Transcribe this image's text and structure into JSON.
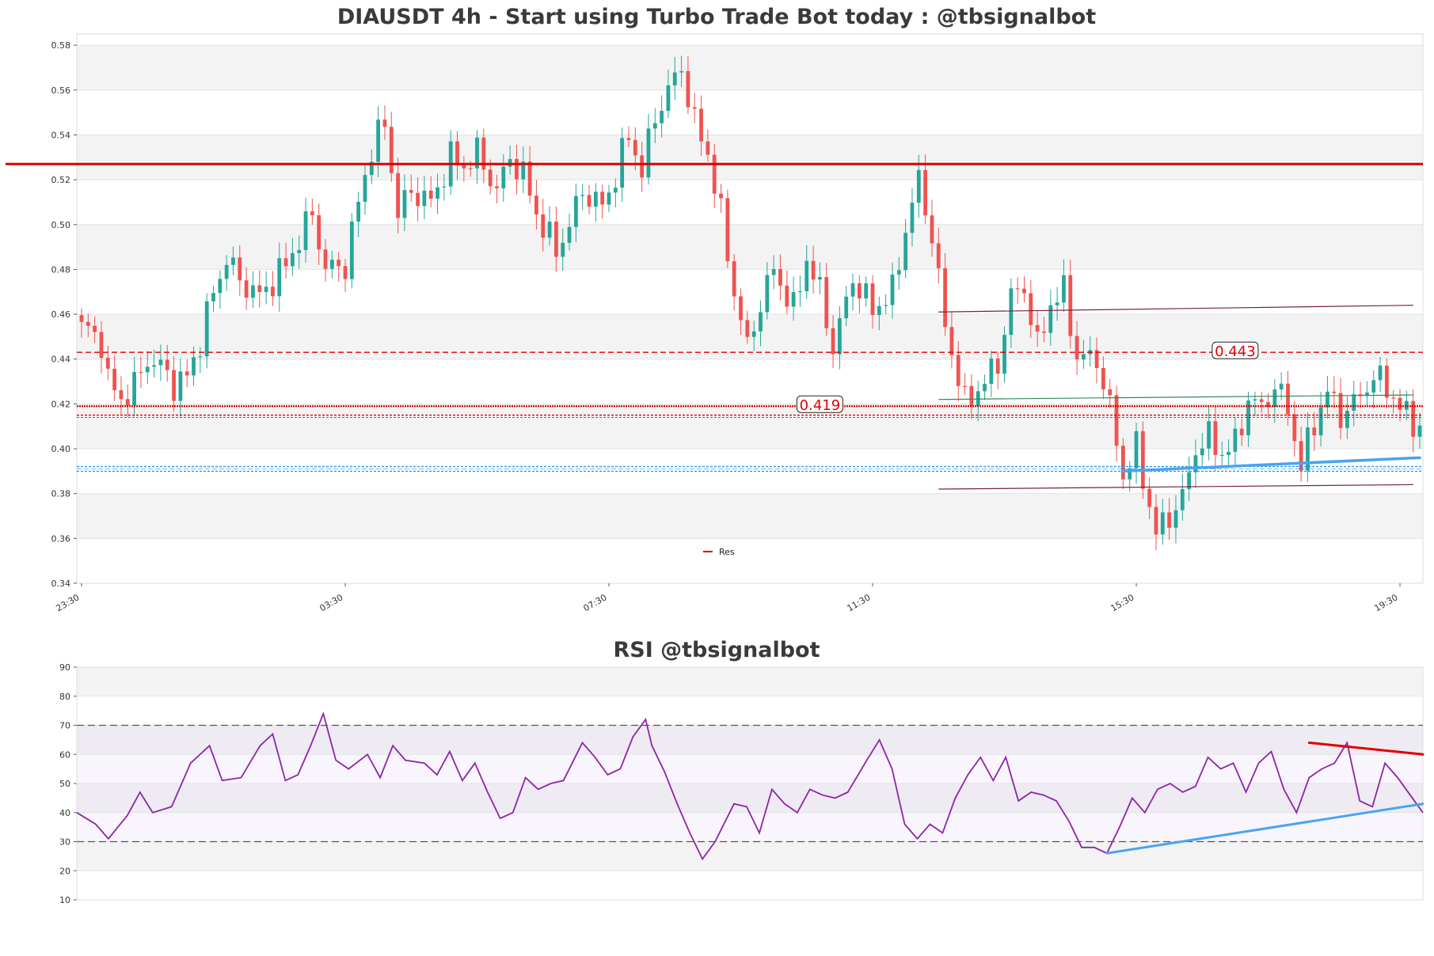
{
  "chart_data": [
    {
      "type": "candlestick",
      "title": "DIAUSDT 4h - Start using Turbo Trade Bot today : @tbsignalbot",
      "xlabel": "",
      "ylabel": "",
      "ylim": [
        0.34,
        0.585
      ],
      "yticks": [
        "0.34",
        "0.36",
        "0.38",
        "0.40",
        "0.42",
        "0.44",
        "0.46",
        "0.48",
        "0.50",
        "0.52",
        "0.54",
        "0.56",
        "0.58"
      ],
      "xticks": [
        "23:30",
        "03:30",
        "07:30",
        "11:30",
        "15:30",
        "19:30"
      ],
      "xtick_index": [
        0,
        40,
        80,
        120,
        160,
        200
      ],
      "n_candles": 204,
      "grid": true,
      "legend": {
        "entries": [
          "Res"
        ],
        "placement": "lower-center"
      },
      "colors": {
        "up": "#26a69a",
        "down": "#ef5350",
        "resistance": "#e00000",
        "support": "#1f8fe6",
        "trend": "#7a2040",
        "accent_green": "#2e8b57"
      },
      "resistance_line": 0.527,
      "hlines_dashed": [
        0.443,
        0.419,
        0.415
      ],
      "support_band": 0.391,
      "price_labels": [
        "0.443",
        "0.419"
      ],
      "trend_channel": [
        {
          "from": [
            130,
            0.461
          ],
          "to": [
            202,
            0.464
          ]
        },
        {
          "from": [
            130,
            0.422
          ],
          "to": [
            202,
            0.424
          ]
        },
        {
          "from": [
            130,
            0.382
          ],
          "to": [
            202,
            0.384
          ]
        }
      ],
      "support_trend": {
        "from": [
          158,
          0.39
        ],
        "to": [
          203,
          0.396
        ]
      },
      "anchors": [
        [
          0,
          0.455
        ],
        [
          3,
          0.448
        ],
        [
          4,
          0.43
        ],
        [
          6,
          0.422
        ],
        [
          8,
          0.428
        ],
        [
          10,
          0.44
        ],
        [
          13,
          0.434
        ],
        [
          14,
          0.428
        ],
        [
          16,
          0.432
        ],
        [
          18,
          0.448
        ],
        [
          20,
          0.47
        ],
        [
          22,
          0.485
        ],
        [
          24,
          0.475
        ],
        [
          27,
          0.468
        ],
        [
          31,
          0.482
        ],
        [
          35,
          0.505
        ],
        [
          37,
          0.48
        ],
        [
          40,
          0.482
        ],
        [
          42,
          0.51
        ],
        [
          44,
          0.534
        ],
        [
          46,
          0.545
        ],
        [
          48,
          0.505
        ],
        [
          50,
          0.515
        ],
        [
          53,
          0.51
        ],
        [
          56,
          0.53
        ],
        [
          58,
          0.526
        ],
        [
          60,
          0.532
        ],
        [
          63,
          0.515
        ],
        [
          65,
          0.53
        ],
        [
          67,
          0.522
        ],
        [
          69,
          0.505
        ],
        [
          72,
          0.488
        ],
        [
          74,
          0.5
        ],
        [
          76,
          0.515
        ],
        [
          79,
          0.508
        ],
        [
          81,
          0.522
        ],
        [
          83,
          0.54
        ],
        [
          85,
          0.524
        ],
        [
          87,
          0.548
        ],
        [
          89,
          0.56
        ],
        [
          91,
          0.57
        ],
        [
          93,
          0.545
        ],
        [
          95,
          0.532
        ],
        [
          97,
          0.504
        ],
        [
          99,
          0.47
        ],
        [
          101,
          0.445
        ],
        [
          103,
          0.465
        ],
        [
          105,
          0.48
        ],
        [
          108,
          0.462
        ],
        [
          110,
          0.485
        ],
        [
          112,
          0.47
        ],
        [
          114,
          0.445
        ],
        [
          117,
          0.476
        ],
        [
          120,
          0.462
        ],
        [
          123,
          0.47
        ],
        [
          125,
          0.498
        ],
        [
          127,
          0.52
        ],
        [
          129,
          0.495
        ],
        [
          131,
          0.455
        ],
        [
          134,
          0.42
        ],
        [
          137,
          0.43
        ],
        [
          139,
          0.438
        ],
        [
          141,
          0.468
        ],
        [
          143,
          0.472
        ],
        [
          145,
          0.445
        ],
        [
          147,
          0.465
        ],
        [
          149,
          0.47
        ],
        [
          151,
          0.441
        ],
        [
          154,
          0.44
        ],
        [
          156,
          0.418
        ],
        [
          158,
          0.388
        ],
        [
          160,
          0.4
        ],
        [
          163,
          0.362
        ],
        [
          165,
          0.37
        ],
        [
          167,
          0.378
        ],
        [
          169,
          0.4
        ],
        [
          171,
          0.405
        ],
        [
          173,
          0.398
        ],
        [
          175,
          0.402
        ],
        [
          177,
          0.422
        ],
        [
          179,
          0.418
        ],
        [
          181,
          0.428
        ],
        [
          183,
          0.418
        ],
        [
          185,
          0.392
        ],
        [
          187,
          0.412
        ],
        [
          189,
          0.425
        ],
        [
          191,
          0.415
        ],
        [
          193,
          0.42
        ],
        [
          196,
          0.432
        ],
        [
          198,
          0.428
        ],
        [
          200,
          0.418
        ],
        [
          202,
          0.412
        ],
        [
          203,
          0.41
        ]
      ]
    },
    {
      "type": "line",
      "title": "RSI @tbsignalbot",
      "xlabel": "",
      "ylabel": "",
      "ylim": [
        10,
        90
      ],
      "yticks": [
        "10",
        "20",
        "30",
        "40",
        "50",
        "60",
        "70",
        "80",
        "90"
      ],
      "overbought": 70,
      "oversold": 30,
      "series": [
        {
          "points": [
            [
              0,
              40
            ],
            [
              3,
              36
            ],
            [
              5,
              31
            ],
            [
              8,
              39
            ],
            [
              10,
              47
            ],
            [
              12,
              40
            ],
            [
              15,
              42
            ],
            [
              18,
              57
            ],
            [
              21,
              63
            ],
            [
              23,
              51
            ],
            [
              26,
              52
            ],
            [
              29,
              63
            ],
            [
              31,
              67
            ],
            [
              33,
              51
            ],
            [
              35,
              53
            ],
            [
              37,
              63
            ],
            [
              39,
              74
            ],
            [
              41,
              58
            ],
            [
              43,
              55
            ],
            [
              46,
              60
            ],
            [
              48,
              52
            ],
            [
              50,
              63
            ],
            [
              52,
              58
            ],
            [
              55,
              57
            ],
            [
              57,
              53
            ],
            [
              59,
              61
            ],
            [
              61,
              51
            ],
            [
              63,
              57
            ],
            [
              65,
              47
            ],
            [
              67,
              38
            ],
            [
              69,
              40
            ],
            [
              71,
              52
            ],
            [
              73,
              48
            ],
            [
              75,
              50
            ],
            [
              77,
              51
            ],
            [
              80,
              64
            ],
            [
              82,
              59
            ],
            [
              84,
              53
            ],
            [
              86,
              55
            ],
            [
              88,
              66
            ],
            [
              90,
              72
            ],
            [
              91,
              63
            ],
            [
              93,
              54
            ],
            [
              95,
              43
            ],
            [
              97,
              33
            ],
            [
              99,
              24
            ],
            [
              101,
              30
            ],
            [
              104,
              43
            ],
            [
              106,
              42
            ],
            [
              108,
              33
            ],
            [
              110,
              48
            ],
            [
              112,
              43
            ],
            [
              114,
              40
            ],
            [
              116,
              48
            ],
            [
              118,
              46
            ],
            [
              120,
              45
            ],
            [
              122,
              47
            ],
            [
              125,
              58
            ],
            [
              127,
              65
            ],
            [
              129,
              55
            ],
            [
              131,
              36
            ],
            [
              133,
              31
            ],
            [
              135,
              36
            ],
            [
              137,
              33
            ],
            [
              139,
              45
            ],
            [
              141,
              53
            ],
            [
              143,
              59
            ],
            [
              145,
              51
            ],
            [
              147,
              59
            ],
            [
              149,
              44
            ],
            [
              151,
              47
            ],
            [
              153,
              46
            ],
            [
              155,
              44
            ],
            [
              157,
              37
            ],
            [
              159,
              28
            ],
            [
              161,
              28
            ],
            [
              163,
              26
            ],
            [
              165,
              35
            ],
            [
              167,
              45
            ],
            [
              169,
              40
            ],
            [
              171,
              48
            ],
            [
              173,
              50
            ],
            [
              175,
              47
            ],
            [
              177,
              49
            ],
            [
              179,
              59
            ],
            [
              181,
              55
            ],
            [
              183,
              57
            ],
            [
              185,
              47
            ],
            [
              187,
              57
            ],
            [
              189,
              61
            ],
            [
              191,
              48
            ],
            [
              193,
              40
            ],
            [
              195,
              52
            ],
            [
              197,
              55
            ],
            [
              199,
              57
            ],
            [
              201,
              64
            ],
            [
              203,
              44
            ],
            [
              205,
              42
            ],
            [
              207,
              57
            ],
            [
              209,
              52
            ],
            [
              211,
              46
            ],
            [
              213,
              40
            ]
          ]
        }
      ],
      "trendlines": [
        {
          "color": "#1f8fe6",
          "from": [
            163,
            26
          ],
          "to": [
            213,
            43
          ]
        },
        {
          "color": "#e00000",
          "from": [
            195,
            64
          ],
          "to": [
            213,
            60
          ]
        }
      ]
    }
  ]
}
